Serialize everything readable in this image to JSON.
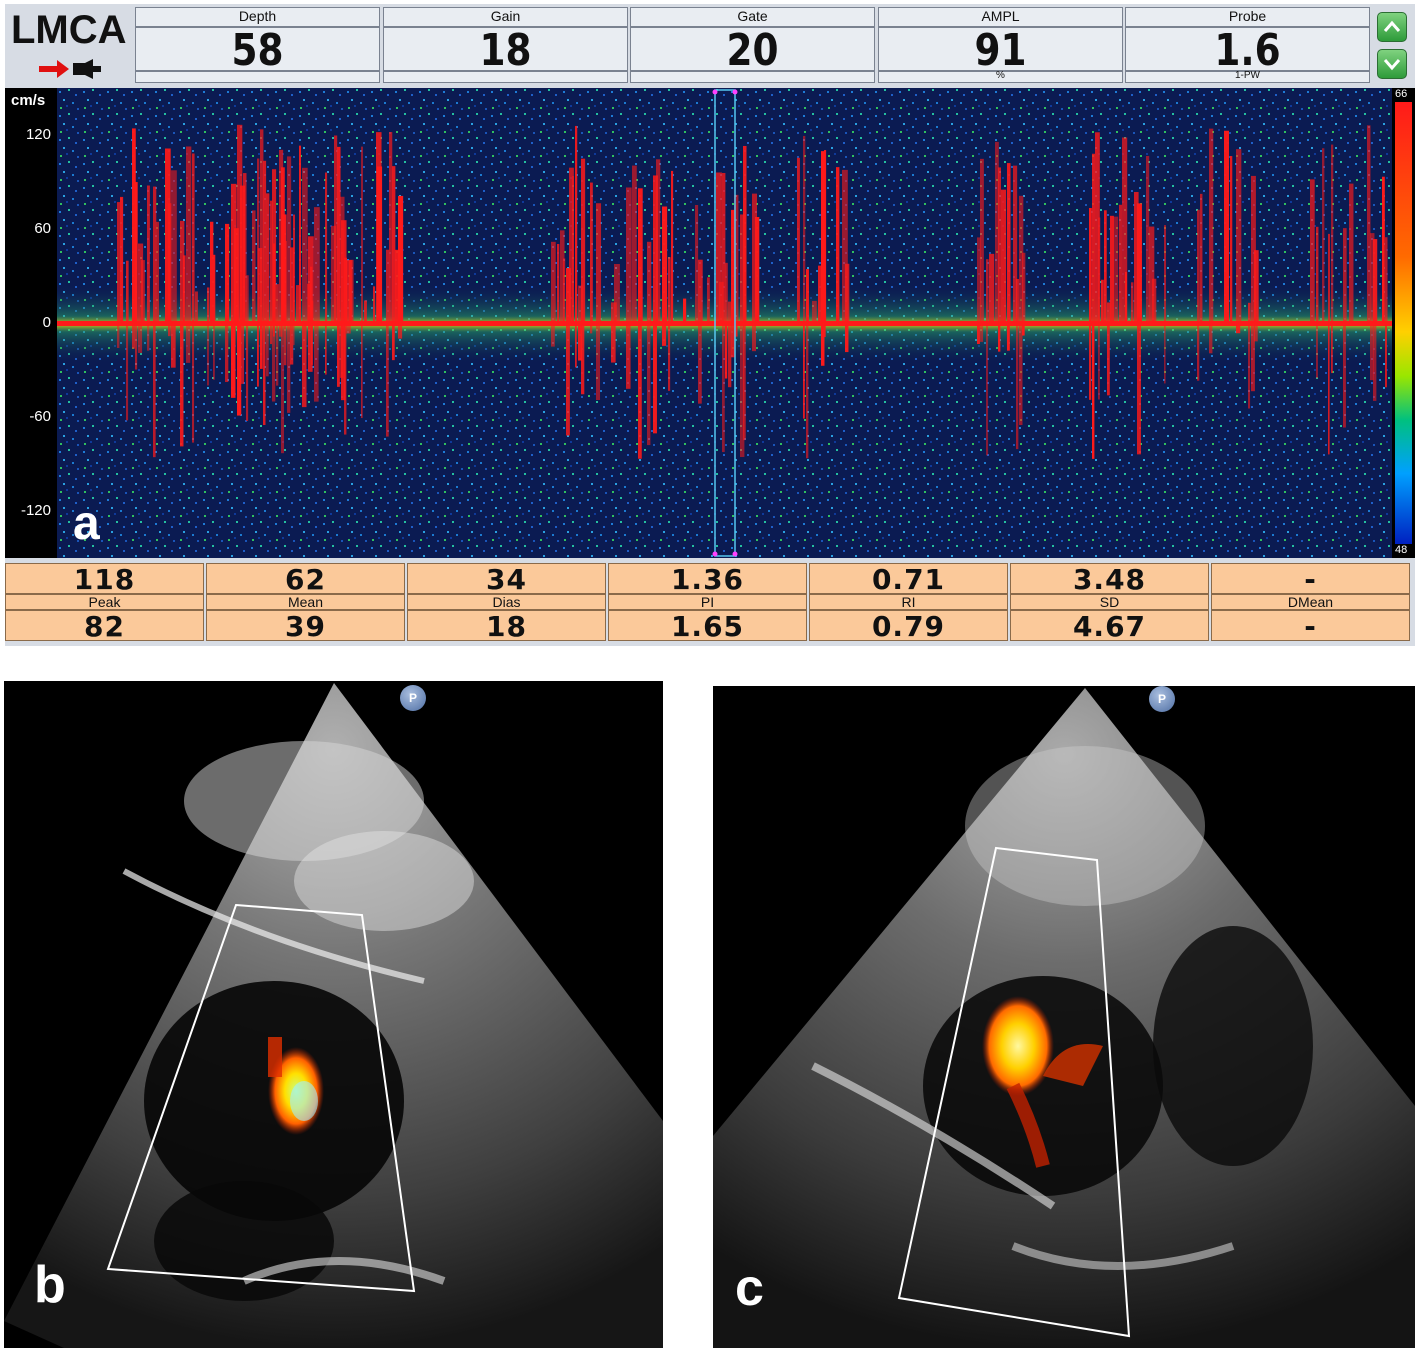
{
  "panel_a": {
    "vessel": "LMCA",
    "params": [
      {
        "label": "Depth",
        "value": "58",
        "unit": ""
      },
      {
        "label": "Gain",
        "value": "18",
        "unit": ""
      },
      {
        "label": "Gate",
        "value": "20",
        "unit": ""
      },
      {
        "label": "AMPL",
        "value": "91",
        "unit": "%"
      },
      {
        "label": "Probe",
        "value": "1.6",
        "unit": "1-PW"
      }
    ],
    "axis_unit": "cm/s",
    "ticks": [
      "120",
      "60",
      "0",
      "-60",
      "-120"
    ],
    "colorbar": {
      "max": "66",
      "min": "48"
    },
    "letter": "a",
    "metrics": {
      "row1": [
        "118",
        "62",
        "34",
        "1.36",
        "0.71",
        "3.48",
        "-"
      ],
      "labels": [
        "Peak",
        "Mean",
        "Dias",
        "PI",
        "RI",
        "SD",
        "DMean"
      ],
      "row2": [
        "82",
        "39",
        "18",
        "1.65",
        "0.79",
        "4.67",
        "-"
      ]
    },
    "colors": {
      "background": "#0a1a4a",
      "signal": "#ff1a1a",
      "metric_cells": "#fbc99a"
    }
  },
  "panel_b": {
    "letter": "b",
    "marker": "P"
  },
  "panel_c": {
    "letter": "c",
    "marker": "P"
  }
}
